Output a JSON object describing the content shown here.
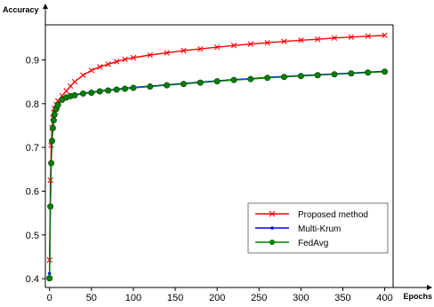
{
  "chart_data": {
    "type": "line",
    "title": "",
    "xlabel": "Epochs",
    "ylabel": "Accuracy",
    "xlim": [
      -5,
      410
    ],
    "ylim": [
      0.38,
      0.98
    ],
    "x_ticks": [
      0,
      50,
      100,
      150,
      200,
      250,
      300,
      350,
      400
    ],
    "y_ticks": [
      0.4,
      0.5,
      0.6,
      0.7,
      0.8,
      0.9
    ],
    "x_tick_labels": [
      "0",
      "50",
      "100",
      "150",
      "200",
      "250",
      "300",
      "350",
      "400"
    ],
    "y_tick_labels": [
      "0.4",
      "0.5",
      "0.6",
      "0.7",
      "0.8",
      "0.9"
    ],
    "grid": false,
    "legend_position": "lower-right",
    "series": [
      {
        "name": "Proposed method",
        "color": "#ff0000",
        "marker": "x",
        "points": [
          [
            0,
            0.443
          ],
          [
            1,
            0.625
          ],
          [
            2,
            0.705
          ],
          [
            3,
            0.745
          ],
          [
            4,
            0.768
          ],
          [
            5,
            0.78
          ],
          [
            6,
            0.789
          ],
          [
            8,
            0.798
          ],
          [
            10,
            0.806
          ],
          [
            15,
            0.818
          ],
          [
            20,
            0.829
          ],
          [
            25,
            0.84
          ],
          [
            30,
            0.85
          ],
          [
            40,
            0.865
          ],
          [
            50,
            0.876
          ],
          [
            60,
            0.884
          ],
          [
            70,
            0.89
          ],
          [
            80,
            0.896
          ],
          [
            90,
            0.901
          ],
          [
            100,
            0.905
          ],
          [
            120,
            0.911
          ],
          [
            140,
            0.916
          ],
          [
            160,
            0.921
          ],
          [
            180,
            0.925
          ],
          [
            200,
            0.929
          ],
          [
            220,
            0.933
          ],
          [
            240,
            0.936
          ],
          [
            260,
            0.939
          ],
          [
            280,
            0.942
          ],
          [
            300,
            0.945
          ],
          [
            320,
            0.947
          ],
          [
            340,
            0.95
          ],
          [
            360,
            0.952
          ],
          [
            380,
            0.954
          ],
          [
            400,
            0.956
          ]
        ]
      },
      {
        "name": "Multi-Krum",
        "color": "#0000ff",
        "marker": "dot",
        "points": [
          [
            0,
            0.412
          ],
          [
            1,
            0.567
          ],
          [
            2,
            0.667
          ],
          [
            3,
            0.718
          ],
          [
            4,
            0.747
          ],
          [
            5,
            0.765
          ],
          [
            6,
            0.777
          ],
          [
            8,
            0.79
          ],
          [
            10,
            0.799
          ],
          [
            15,
            0.81
          ],
          [
            20,
            0.815
          ],
          [
            25,
            0.818
          ],
          [
            30,
            0.82
          ],
          [
            40,
            0.824
          ],
          [
            50,
            0.826
          ],
          [
            60,
            0.829
          ],
          [
            70,
            0.831
          ],
          [
            80,
            0.833
          ],
          [
            90,
            0.835
          ],
          [
            100,
            0.837
          ],
          [
            120,
            0.84
          ],
          [
            140,
            0.843
          ],
          [
            160,
            0.846
          ],
          [
            180,
            0.849
          ],
          [
            200,
            0.852
          ],
          [
            220,
            0.855
          ],
          [
            240,
            0.857
          ],
          [
            260,
            0.86
          ],
          [
            280,
            0.862
          ],
          [
            300,
            0.864
          ],
          [
            320,
            0.866
          ],
          [
            340,
            0.868
          ],
          [
            360,
            0.87
          ],
          [
            380,
            0.872
          ],
          [
            400,
            0.874
          ]
        ]
      },
      {
        "name": "FedAvg",
        "color": "#008000",
        "marker": "circle",
        "points": [
          [
            0,
            0.401
          ],
          [
            1,
            0.565
          ],
          [
            2,
            0.664
          ],
          [
            3,
            0.715
          ],
          [
            4,
            0.744
          ],
          [
            5,
            0.762
          ],
          [
            6,
            0.775
          ],
          [
            8,
            0.788
          ],
          [
            10,
            0.797
          ],
          [
            15,
            0.809
          ],
          [
            20,
            0.814
          ],
          [
            25,
            0.817
          ],
          [
            30,
            0.819
          ],
          [
            40,
            0.823
          ],
          [
            50,
            0.825
          ],
          [
            60,
            0.828
          ],
          [
            70,
            0.83
          ],
          [
            80,
            0.832
          ],
          [
            90,
            0.834
          ],
          [
            100,
            0.836
          ],
          [
            120,
            0.839
          ],
          [
            140,
            0.842
          ],
          [
            160,
            0.845
          ],
          [
            180,
            0.848
          ],
          [
            200,
            0.851
          ],
          [
            220,
            0.854
          ],
          [
            240,
            0.856
          ],
          [
            260,
            0.859
          ],
          [
            280,
            0.861
          ],
          [
            300,
            0.863
          ],
          [
            320,
            0.865
          ],
          [
            340,
            0.867
          ],
          [
            360,
            0.869
          ],
          [
            380,
            0.871
          ],
          [
            400,
            0.873
          ]
        ]
      }
    ]
  }
}
